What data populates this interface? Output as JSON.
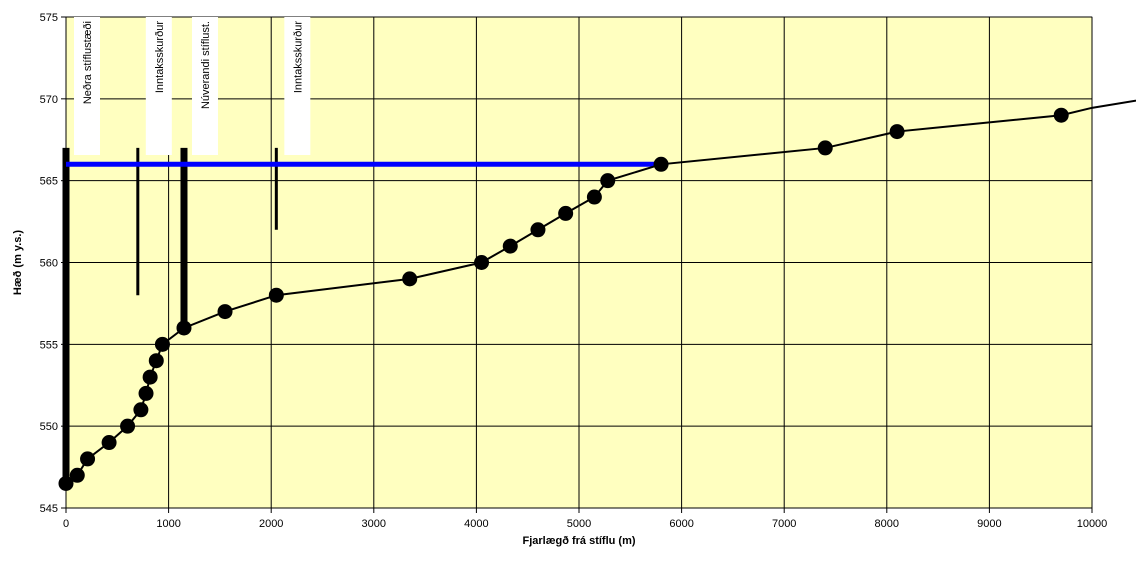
{
  "chart_data": {
    "type": "line",
    "title": "",
    "xlabel": "Fjarlægð frá stíflu (m)",
    "ylabel": "Hæð (m y.s.)",
    "xlim": [
      0,
      10000
    ],
    "ylim": [
      545,
      575
    ],
    "x_ticks": [
      0,
      1000,
      2000,
      3000,
      4000,
      5000,
      6000,
      7000,
      8000,
      9000,
      10000
    ],
    "y_ticks": [
      545,
      550,
      555,
      560,
      565,
      570,
      575
    ],
    "grid": true,
    "legend": "none",
    "colors": {
      "plot_background": "#ffffc0",
      "grid": "#000000",
      "profile": "#000000",
      "water_level": "#0000ff"
    },
    "series": [
      {
        "points": [
          {
            "x": 0,
            "y": 546.5
          },
          {
            "x": 110,
            "y": 547
          },
          {
            "x": 210,
            "y": 548
          },
          {
            "x": 420,
            "y": 549
          },
          {
            "x": 600,
            "y": 550
          },
          {
            "x": 730,
            "y": 551
          },
          {
            "x": 780,
            "y": 552
          },
          {
            "x": 820,
            "y": 553
          },
          {
            "x": 880,
            "y": 554
          },
          {
            "x": 940,
            "y": 555
          },
          {
            "x": 1150,
            "y": 556
          },
          {
            "x": 1550,
            "y": 557
          },
          {
            "x": 2050,
            "y": 558
          },
          {
            "x": 3350,
            "y": 559
          },
          {
            "x": 4050,
            "y": 560
          },
          {
            "x": 4330,
            "y": 561
          },
          {
            "x": 4600,
            "y": 562
          },
          {
            "x": 4870,
            "y": 563
          },
          {
            "x": 5150,
            "y": 564
          },
          {
            "x": 5280,
            "y": 565
          },
          {
            "x": 5800,
            "y": 566
          },
          {
            "x": 7400,
            "y": 567
          },
          {
            "x": 8100,
            "y": 568
          },
          {
            "x": 9700,
            "y": 569
          }
        ],
        "line_end": {
          "x": 10500,
          "y": 570.2
        }
      }
    ],
    "water_level": {
      "x_from": 0,
      "x_to": 5800,
      "y": 566
    },
    "annotations": [
      {
        "text": "Neðra stíflustæði",
        "x": 0,
        "y_from": 546.5,
        "y_to": 567,
        "thick": true
      },
      {
        "text": "Inntaksskurður",
        "x": 700,
        "y_from": 558,
        "y_to": 567,
        "thick": false
      },
      {
        "text": "Núverandi stíflust.",
        "x": 1150,
        "y_from": 556,
        "y_to": 567,
        "thick": true
      },
      {
        "text": "Inntaksskurður",
        "x": 2050,
        "y_from": 562,
        "y_to": 567,
        "thick": false
      }
    ]
  }
}
